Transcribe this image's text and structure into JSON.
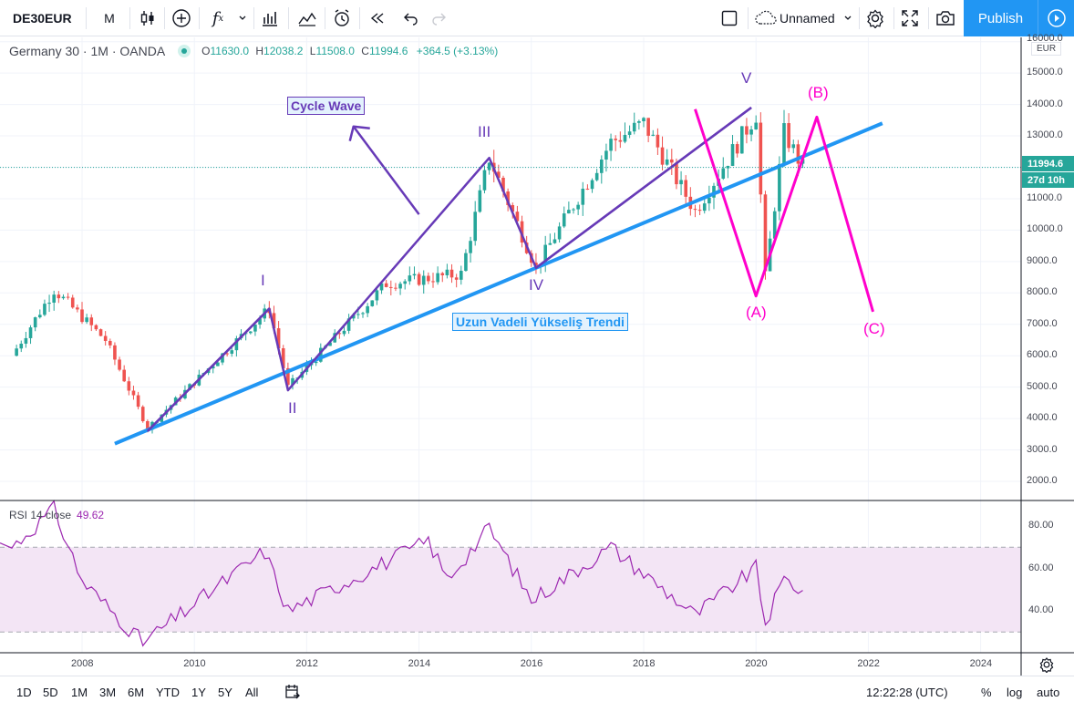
{
  "toolbar": {
    "symbol": "DE30EUR",
    "interval": "M",
    "layout_name": "Unnamed",
    "publish_label": "Publish",
    "icons": [
      "candles-icon",
      "add-icon",
      "indicators-icon",
      "chevron-down-icon",
      "compare-icon",
      "templates-icon",
      "alert-icon",
      "replay-icon",
      "undo-icon",
      "redo-icon",
      "layout-icon",
      "cloud-icon",
      "settings-icon",
      "fullscreen-icon",
      "camera-icon",
      "play-icon"
    ]
  },
  "legend": {
    "title": "Germany 30 · 1M · OANDA",
    "o_label": "O",
    "o_value": "11630.0",
    "h_label": "H",
    "h_value": "12038.2",
    "l_label": "L",
    "l_value": "11508.0",
    "c_label": "C",
    "c_value": "11994.6",
    "change": "+364.5 (+3.13%)"
  },
  "rsi_legend": {
    "label": "RSI 14 close",
    "value": "49.62"
  },
  "price_axis": {
    "currency": "EUR",
    "labels": [
      "16000.0",
      "15000.0",
      "14000.0",
      "13000.0",
      "12000.0",
      "11000.0",
      "10000.0",
      "9000.0",
      "8000.0",
      "7000.0",
      "6000.0",
      "5000.0",
      "4000.0",
      "3000.0",
      "2000.0"
    ],
    "last_price": "11994.6",
    "countdown": "27d 10h"
  },
  "rsi_axis": {
    "labels": [
      "80.00",
      "60.00",
      "40.00"
    ]
  },
  "time_axis": {
    "labels": [
      "2008",
      "2010",
      "2012",
      "2014",
      "2016",
      "2018",
      "2020",
      "2022",
      "2024"
    ]
  },
  "annotations": {
    "cycle_wave": "Cycle Wave",
    "trend": "Uzun Vadeli Yükseliş Trendi",
    "waves": {
      "I": "I",
      "II": "II",
      "III": "III",
      "IV": "IV",
      "V": "V",
      "A": "(A)",
      "B": "(B)",
      "C": "(C)"
    }
  },
  "bottom": {
    "ranges": [
      "1D",
      "5D",
      "1M",
      "3M",
      "6M",
      "YTD",
      "1Y",
      "5Y",
      "All"
    ],
    "time": "12:22:28 (UTC)",
    "percent": "%",
    "log": "log",
    "auto": "auto"
  },
  "colors": {
    "up": "#26a69a",
    "down": "#ef5350",
    "purple": "#673ab7",
    "magenta": "#ff00cc",
    "trend": "#2196f3",
    "rsi": "#9c27b0",
    "rsi_band": "#f3e5f5"
  },
  "chart_data": [
    {
      "type": "candlestick",
      "title": "Germany 30 · 1M · OANDA",
      "x_range": [
        "2006",
        "2025"
      ],
      "ylim": [
        1500,
        16500
      ],
      "last_close": 11994.6,
      "key_points": [
        {
          "x": "2006-10",
          "y": 6000
        },
        {
          "x": "2007-07",
          "y": 8100
        },
        {
          "x": "2008-06",
          "y": 6500
        },
        {
          "x": "2009-03",
          "y": 3700
        },
        {
          "x": "2011-05",
          "y": 7500
        },
        {
          "x": "2011-09",
          "y": 5000
        },
        {
          "x": "2013-06",
          "y": 8300
        },
        {
          "x": "2014-10",
          "y": 8600
        },
        {
          "x": "2015-04",
          "y": 12300
        },
        {
          "x": "2016-02",
          "y": 8800
        },
        {
          "x": "2017-06",
          "y": 12800
        },
        {
          "x": "2018-01",
          "y": 13400
        },
        {
          "x": "2018-12",
          "y": 10600
        },
        {
          "x": "2020-01",
          "y": 13700
        },
        {
          "x": "2020-03",
          "y": 8500
        },
        {
          "x": "2020-07",
          "y": 13100
        },
        {
          "x": "2020-11",
          "y": 11990
        }
      ]
    },
    {
      "type": "line",
      "series": [
        {
          "name": "RSI 14 close",
          "last": 49.62
        }
      ],
      "ylim": [
        20,
        90
      ],
      "bands": [
        30,
        70
      ],
      "key_points": [
        {
          "x": "2006-10",
          "y": 70
        },
        {
          "x": "2007-07",
          "y": 88
        },
        {
          "x": "2008-01",
          "y": 54
        },
        {
          "x": "2009-02",
          "y": 25
        },
        {
          "x": "2011-04",
          "y": 68
        },
        {
          "x": "2011-09",
          "y": 40
        },
        {
          "x": "2014-03",
          "y": 73
        },
        {
          "x": "2014-07",
          "y": 55
        },
        {
          "x": "2015-04",
          "y": 79
        },
        {
          "x": "2016-01",
          "y": 45
        },
        {
          "x": "2017-06",
          "y": 70
        },
        {
          "x": "2018-12",
          "y": 38
        },
        {
          "x": "2020-01",
          "y": 60
        },
        {
          "x": "2020-03",
          "y": 34
        },
        {
          "x": "2020-07",
          "y": 55
        },
        {
          "x": "2020-11",
          "y": 49.62
        }
      ]
    }
  ]
}
